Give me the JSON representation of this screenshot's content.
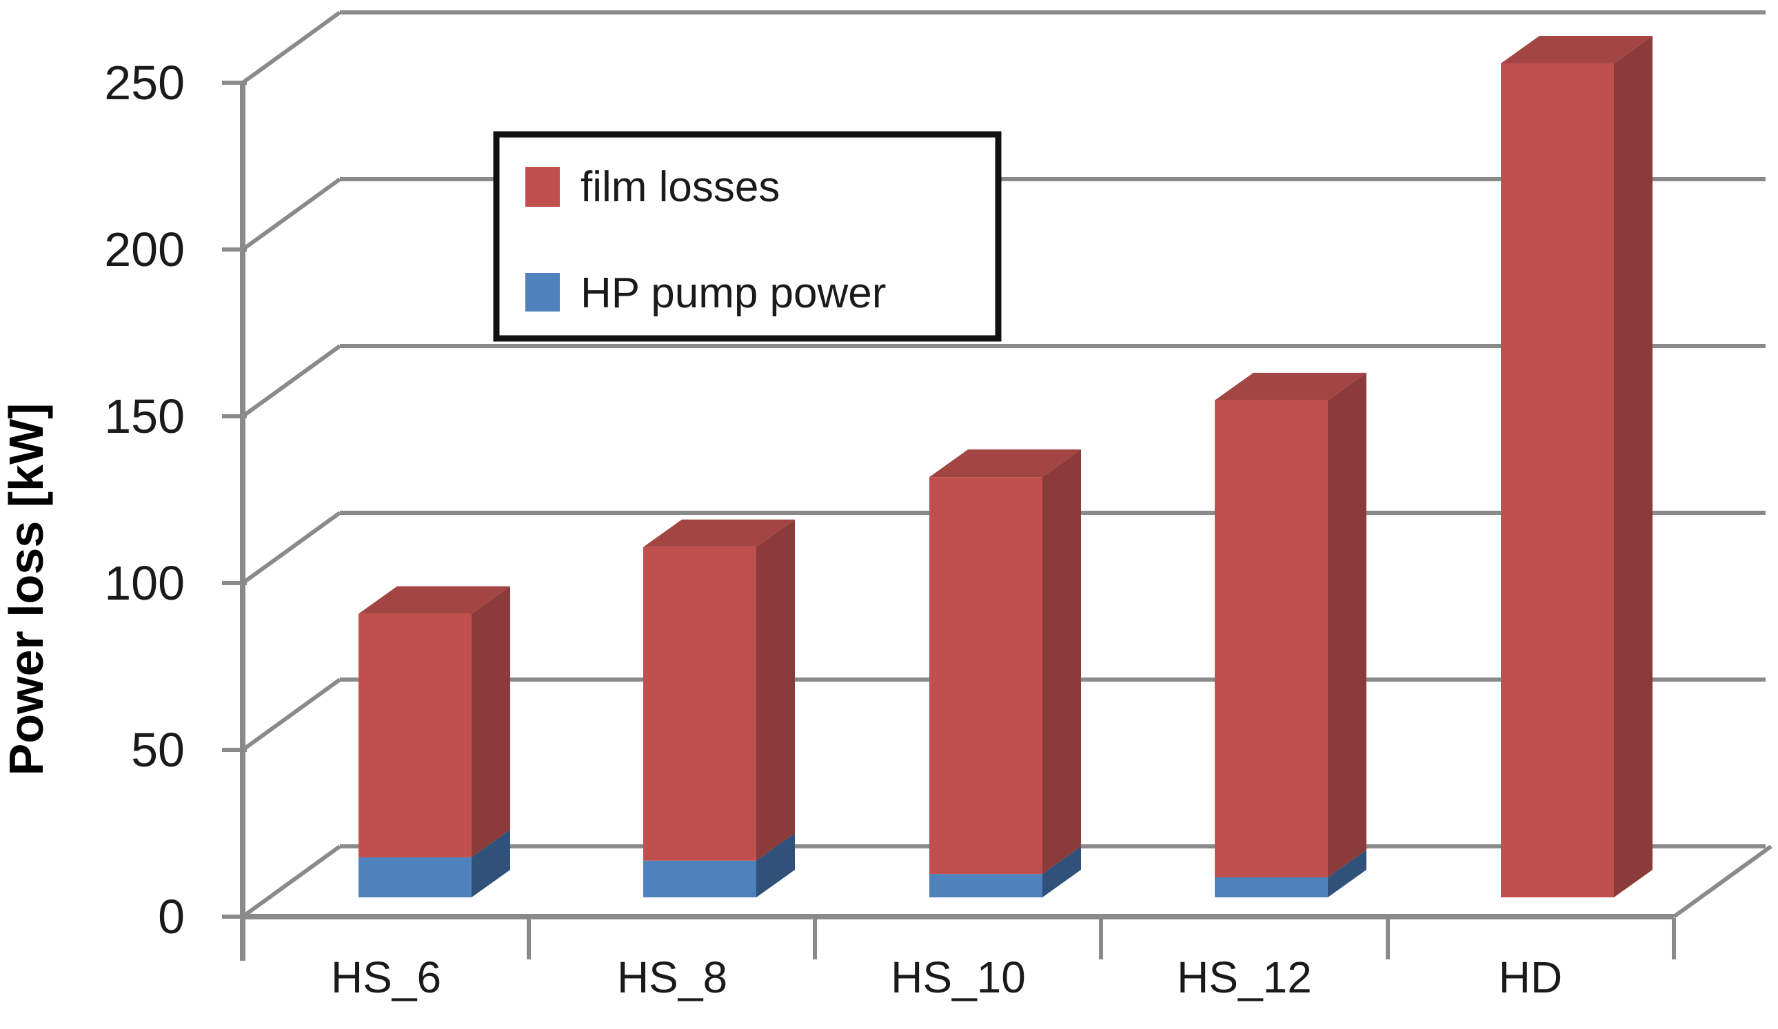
{
  "chart_data": {
    "type": "bar",
    "subtype": "3d-stacked-column",
    "title": "",
    "xlabel": "",
    "ylabel": "Power loss [kW]",
    "categories": [
      "HS_6",
      "HS_8",
      "HS_10",
      "HS_12",
      "HD"
    ],
    "series": [
      {
        "name": "HP pump power",
        "color": "#4F81BD",
        "values": [
          12,
          11,
          7,
          6,
          0
        ]
      },
      {
        "name": "film losses",
        "color": "#C0504D",
        "values": [
          73,
          94,
          119,
          143,
          250
        ]
      }
    ],
    "stack_totals": [
      85,
      105,
      126,
      149,
      250
    ],
    "ylim": [
      0,
      250
    ],
    "ytick_interval": 50,
    "yticks": [
      0,
      50,
      100,
      150,
      200,
      250
    ],
    "grid": true,
    "legend_position": "upper-left-inside"
  },
  "colors": {
    "film_front": "#C0504D",
    "film_side": "#8B3B39",
    "film_top": "#A34643",
    "pump_front": "#4F81BD",
    "pump_side": "#2F517A",
    "pump_top": "#3B6496",
    "gridline": "#8a8a8a",
    "text": "#1a1a1a",
    "legend_border": "#111111",
    "background": "#ffffff"
  }
}
